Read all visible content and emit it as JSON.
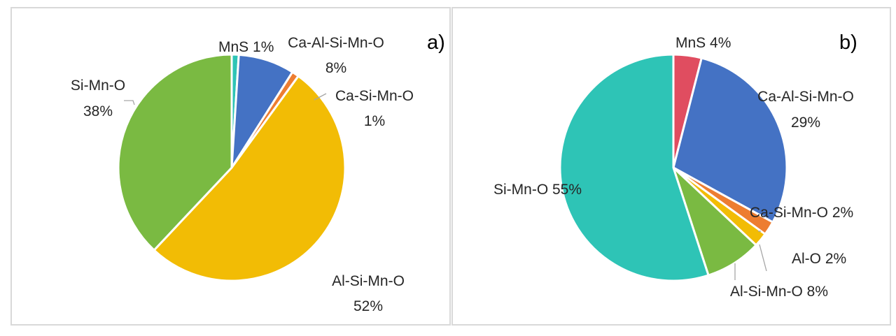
{
  "chart_data": [
    {
      "type": "pie",
      "panel_label": "a)",
      "unit": "%",
      "slices": [
        {
          "label": "MnS",
          "value": 1,
          "text": "MnS 1%",
          "color": "#2ec4b6"
        },
        {
          "label": "Ca-Al-Si-Mn-O",
          "value": 8,
          "text": "Ca-Al-Si-Mn-O 8%",
          "color": "#4472c4"
        },
        {
          "label": "Ca-Si-Mn-O",
          "value": 1,
          "text": "Ca-Si-Mn-O 1%",
          "color": "#ed7d31"
        },
        {
          "label": "Al-Si-Mn-O",
          "value": 52,
          "text": "Al-Si-Mn-O 52%",
          "color": "#f2bc05"
        },
        {
          "label": "Si-Mn-O",
          "value": 38,
          "text": "Si-Mn-O 38%",
          "color": "#7aba42"
        }
      ]
    },
    {
      "type": "pie",
      "panel_label": "b)",
      "unit": "%",
      "slices": [
        {
          "label": "MnS",
          "value": 4,
          "text": "MnS 4%",
          "color": "#e04d60"
        },
        {
          "label": "Ca-Al-Si-Mn-O",
          "value": 29,
          "text": "Ca-Al-Si-Mn-O 29%",
          "color": "#4472c4"
        },
        {
          "label": "Ca-Si-Mn-O",
          "value": 2,
          "text": "Ca-Si-Mn-O 2%",
          "color": "#ed7d31"
        },
        {
          "label": "Al-O",
          "value": 2,
          "text": "Al-O 2%",
          "color": "#f2bc05"
        },
        {
          "label": "Al-Si-Mn-O",
          "value": 8,
          "text": "Al-Si-Mn-O 8%",
          "color": "#7aba42"
        },
        {
          "label": "Si-Mn-O",
          "value": 55,
          "text": "Si-Mn-O 55%",
          "color": "#2ec4b6"
        }
      ]
    }
  ]
}
